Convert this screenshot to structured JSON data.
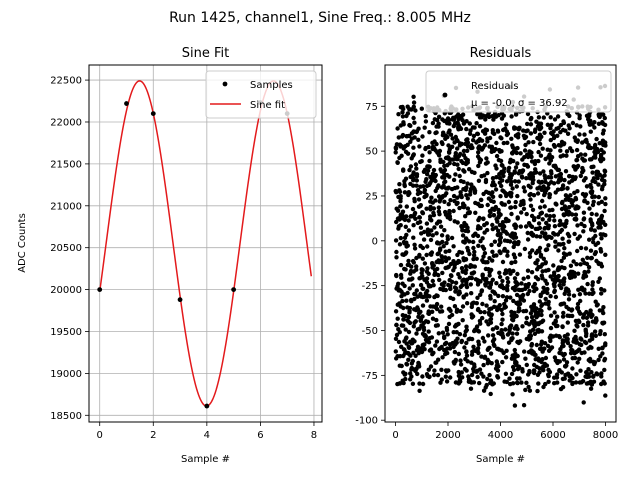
{
  "figure": {
    "suptitle": "Run 1425, channel1, Sine Freq.: 8.005 MHz"
  },
  "chart_data": [
    {
      "type": "line",
      "title": "Sine Fit",
      "xlabel": "Sample #",
      "ylabel": "ADC Counts",
      "xlim": [
        -0.4,
        8.3
      ],
      "ylim": [
        18420,
        22680
      ],
      "xticks": [
        0,
        2,
        4,
        6,
        8
      ],
      "yticks": [
        18500,
        19000,
        19500,
        20000,
        20500,
        21000,
        21500,
        22000,
        22500
      ],
      "grid": true,
      "legend_position": "top-right",
      "samples": {
        "name": "Samples",
        "color": "#000000",
        "x": [
          0,
          1,
          2,
          3,
          4,
          5,
          6,
          7
        ],
        "y": [
          20000,
          22220,
          22100,
          19880,
          18610,
          20000,
          22230,
          22100
        ]
      },
      "fit": {
        "name": "Sine fit",
        "color": "#e31a1c",
        "model": {
          "offset": 20550,
          "amplitude": 1940,
          "period": 5.0,
          "phase": -0.3,
          "x_start": 0,
          "x_end": 7.9
        }
      }
    },
    {
      "type": "scatter",
      "title": "Residuals",
      "xlabel": "Sample #",
      "ylabel": "",
      "xlim": [
        -400,
        8400
      ],
      "ylim": [
        -101,
        98
      ],
      "xticks": [
        0,
        2000,
        4000,
        6000,
        8000
      ],
      "yticks": [
        -100,
        -75,
        -50,
        -25,
        0,
        25,
        50,
        75
      ],
      "grid": false,
      "legend_position": "top-right",
      "series": {
        "name": "Residuals",
        "color": "#000000",
        "x_range": [
          0,
          8000
        ],
        "y_range": [
          -92,
          88
        ],
        "mean": -0.0,
        "sigma": 36.92
      },
      "stats_text": "μ = -0.0, σ = 36.92"
    }
  ]
}
